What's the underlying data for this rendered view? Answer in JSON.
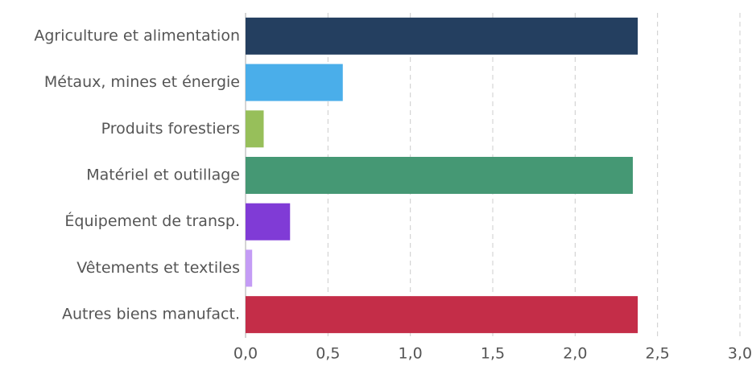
{
  "chart_data": {
    "type": "barh",
    "categories": [
      "Agriculture et alimentation",
      "Métaux, mines et énergie",
      "Produits forestiers",
      "Matériel et outillage",
      "Équipement de transp.",
      "Vêtements et textiles",
      "Autres biens manufact."
    ],
    "values": [
      2.38,
      0.59,
      0.11,
      2.35,
      0.27,
      0.04,
      2.38
    ],
    "colors": [
      "#243f60",
      "#4aaeea",
      "#97bf5a",
      "#459874",
      "#803bd6",
      "#c49cf5",
      "#c42d48"
    ],
    "xlim": [
      0,
      3
    ],
    "xticks": [
      {
        "value": 0,
        "label": "0,0"
      },
      {
        "value": 0.5,
        "label": "0,5"
      },
      {
        "value": 1,
        "label": "1,0"
      },
      {
        "value": 1.5,
        "label": "1,5"
      },
      {
        "value": 2,
        "label": "2,0"
      },
      {
        "value": 2.5,
        "label": "2,5"
      },
      {
        "value": 3,
        "label": "3,0"
      }
    ],
    "grid": true
  }
}
